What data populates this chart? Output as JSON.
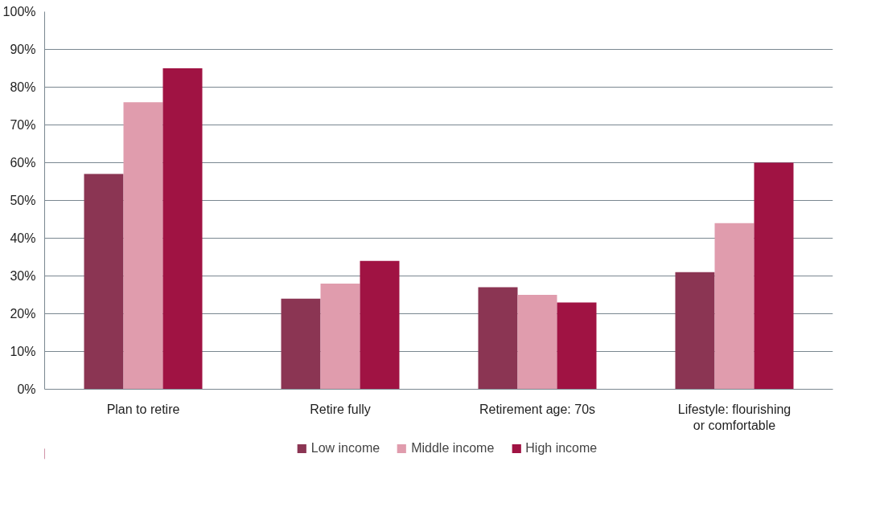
{
  "chart_data": {
    "type": "bar",
    "categories": [
      "Plan to retire",
      "Retire fully",
      "Retirement age: 70s",
      "Lifestyle: flourishing\nor comfortable"
    ],
    "series": [
      {
        "name": "Low income",
        "color": "#8b3553",
        "values": [
          57,
          24,
          27,
          31
        ]
      },
      {
        "name": "Middle income",
        "color": "#e09cad",
        "values": [
          76,
          28,
          25,
          44
        ]
      },
      {
        "name": "High income",
        "color": "#a01343",
        "values": [
          85,
          34,
          23,
          60
        ]
      }
    ],
    "ylim": [
      0,
      100
    ],
    "yticks": [
      {
        "value": 0,
        "label": "0%"
      },
      {
        "value": 10,
        "label": "10%"
      },
      {
        "value": 20,
        "label": "20%"
      },
      {
        "value": 30,
        "label": "30%"
      },
      {
        "value": 40,
        "label": "40%"
      },
      {
        "value": 50,
        "label": "50%"
      },
      {
        "value": 60,
        "label": "60%"
      },
      {
        "value": 70,
        "label": "70%"
      },
      {
        "value": 80,
        "label": "80%"
      },
      {
        "value": 90,
        "label": "90%"
      },
      {
        "value": 100,
        "label": "100%"
      }
    ],
    "grid": "y",
    "legend": "bottom"
  }
}
